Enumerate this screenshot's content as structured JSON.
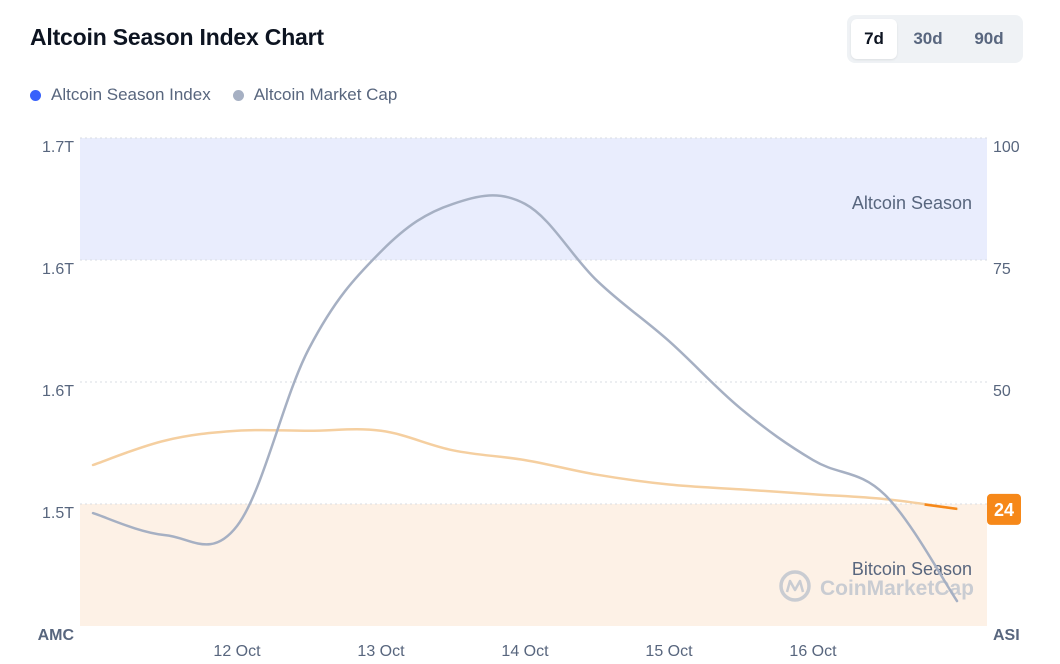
{
  "header": {
    "title": "Altcoin Season Index Chart",
    "range_options": [
      "7d",
      "30d",
      "90d"
    ],
    "selected_range": "7d"
  },
  "legend": [
    {
      "label": "Altcoin Season Index",
      "color": "#3861fb"
    },
    {
      "label": "Altcoin Market Cap",
      "color": "#a6b0c3"
    }
  ],
  "zones": {
    "altcoin_season": {
      "label": "Altcoin Season",
      "color": "#e9edfd"
    },
    "bitcoin_season": {
      "label": "Bitcoin Season",
      "color": "#fdf1e6"
    }
  },
  "watermark": {
    "text": "CoinMarketCap",
    "icon": "coinmarketcap-logo-icon"
  },
  "chart_data": {
    "type": "line",
    "x_labels": [
      "12 Oct",
      "13 Oct",
      "14 Oct",
      "15 Oct",
      "16 Oct"
    ],
    "left_axis": {
      "title": "AMC",
      "tick_labels": [
        "1.7T",
        "1.6T",
        "1.6T",
        "1.5T"
      ]
    },
    "right_axis": {
      "title": "ASI",
      "tick_labels": [
        "100",
        "75",
        "50"
      ],
      "ylim": [
        0,
        100
      ]
    },
    "x": [
      11.0,
      11.5,
      12.0,
      12.5,
      13.0,
      13.5,
      14.0,
      14.5,
      15.0,
      15.5,
      16.0,
      16.5,
      17.0
    ],
    "series": [
      {
        "name": "Altcoin Season Index",
        "color": "#f5cfa0",
        "values": [
          33,
          38,
          40,
          40,
          40,
          36,
          34,
          31,
          29,
          28,
          27,
          26,
          24
        ]
      },
      {
        "name": "Altcoin Market Cap",
        "color": "#a6b0c3",
        "values": [
          1.495,
          1.483,
          1.488,
          1.585,
          1.638,
          1.664,
          1.664,
          1.622,
          1.589,
          1.552,
          1.524,
          1.505,
          1.447
        ]
      }
    ],
    "current_value": {
      "label": "24",
      "value": 24,
      "color": "#f68819"
    }
  }
}
